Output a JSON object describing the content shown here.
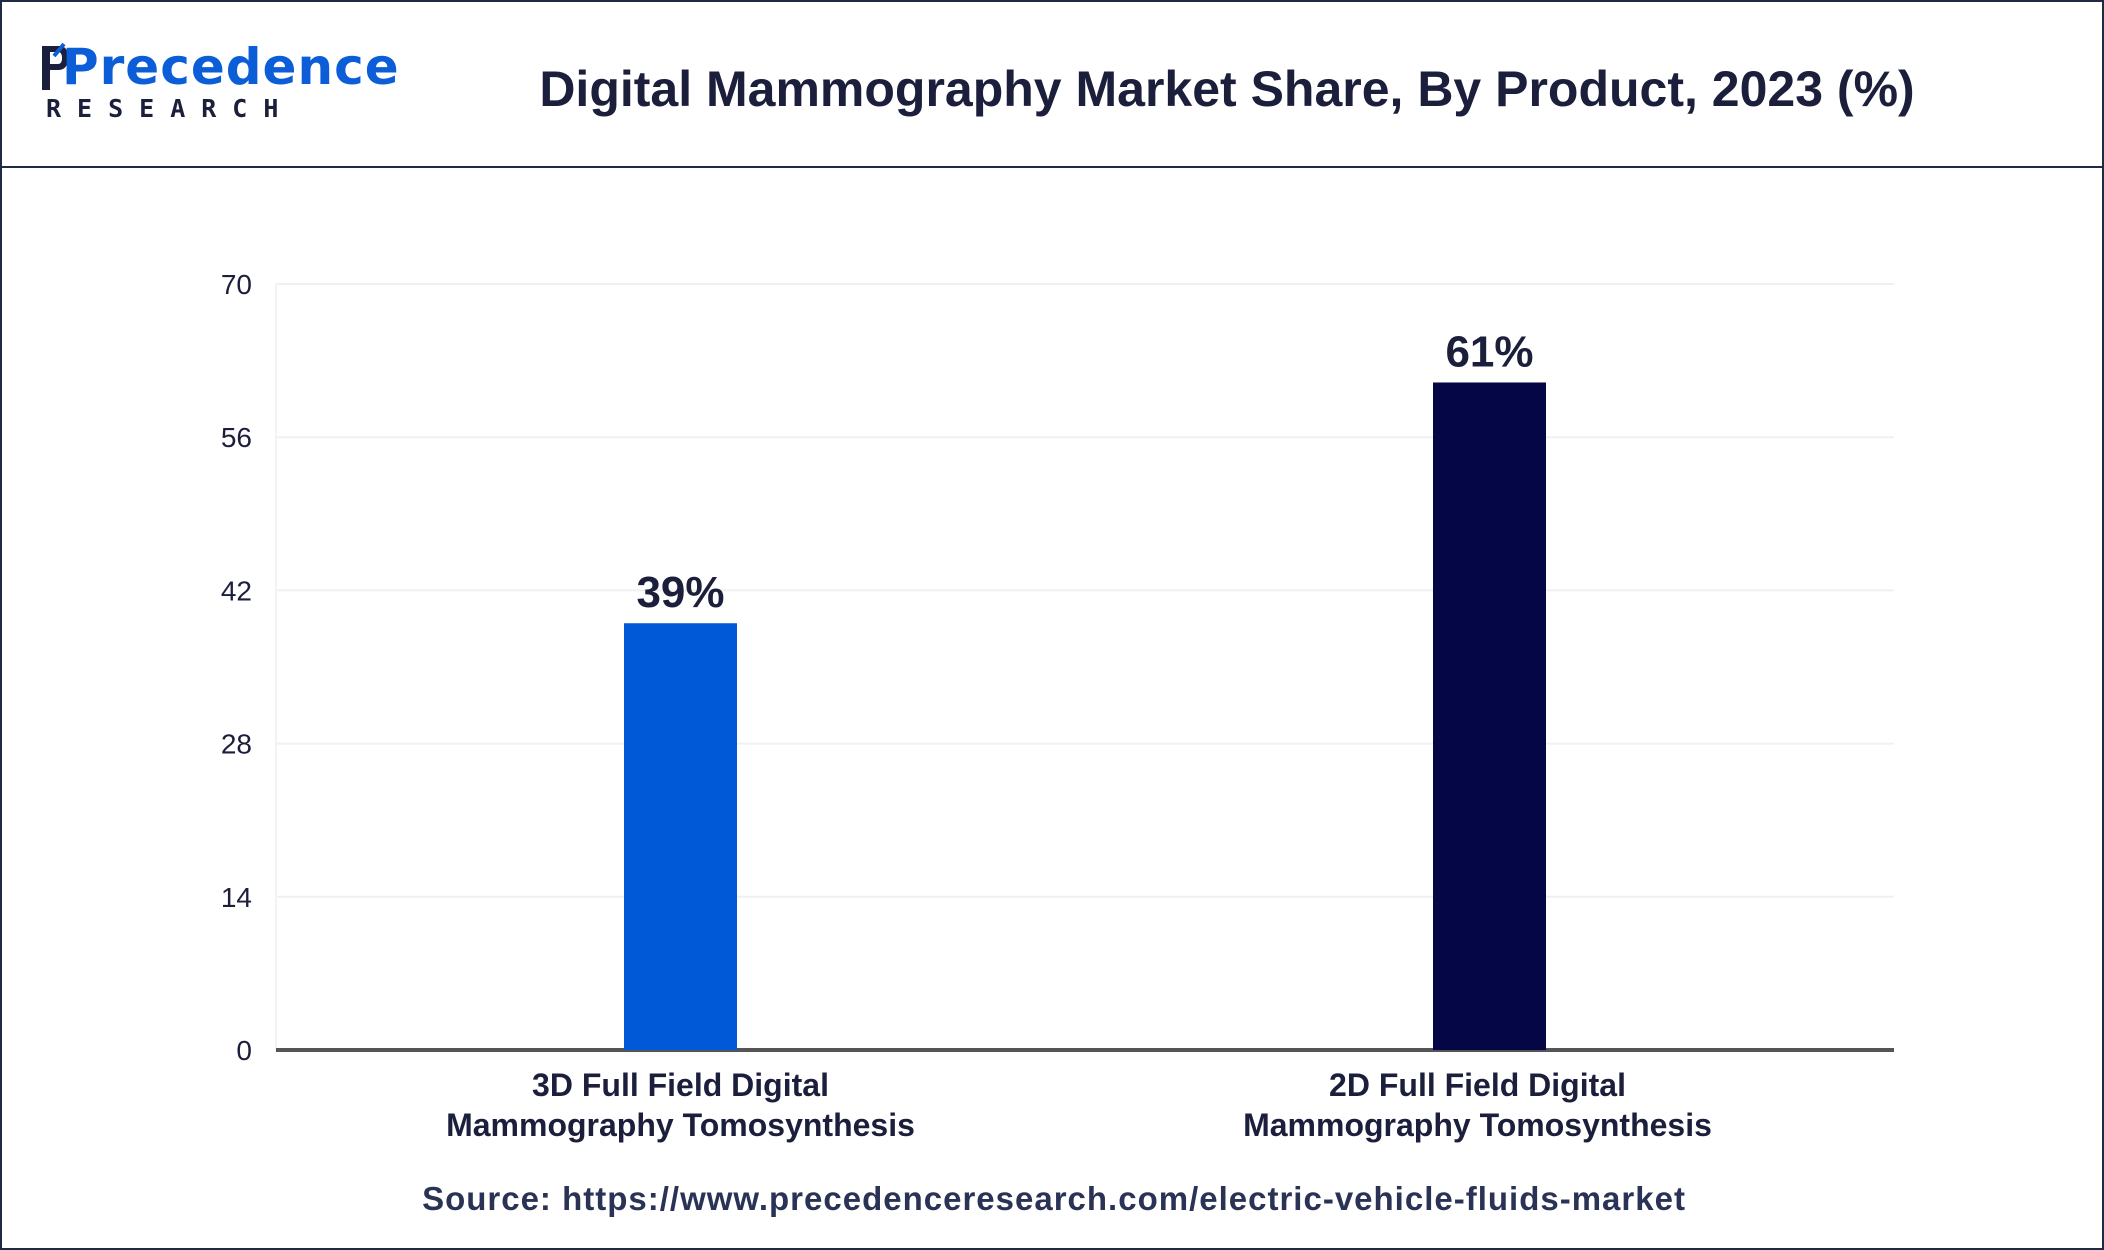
{
  "header": {
    "logo_word": "Precedence",
    "logo_sub": "RESEARCH",
    "title": "Digital Mammography Market Share, By Product, 2023 (%)"
  },
  "colors": {
    "bar_3d": "#005ad8",
    "bar_2d": "#050645",
    "text": "#1b1f3b",
    "axis": "#555555",
    "grid": "#f0f0f0"
  },
  "chart_data": {
    "type": "bar",
    "title": "Digital Mammography Market Share, By Product, 2023 (%)",
    "xlabel": "",
    "ylabel": "",
    "ylim": [
      0,
      70
    ],
    "yticks": [
      "0",
      "14",
      "28",
      "42",
      "56",
      "70"
    ],
    "categories": [
      [
        "3D Full Field Digital",
        "Mammography Tomosynthesis"
      ],
      [
        "2D Full Field Digital",
        "Mammography Tomosynthesis"
      ]
    ],
    "values": [
      39,
      61
    ],
    "value_labels": [
      "39%",
      "61%"
    ],
    "grid": true,
    "legend": "none"
  },
  "footer": {
    "source": "Source: https://www.precedenceresearch.com/electric-vehicle-fluids-market"
  }
}
